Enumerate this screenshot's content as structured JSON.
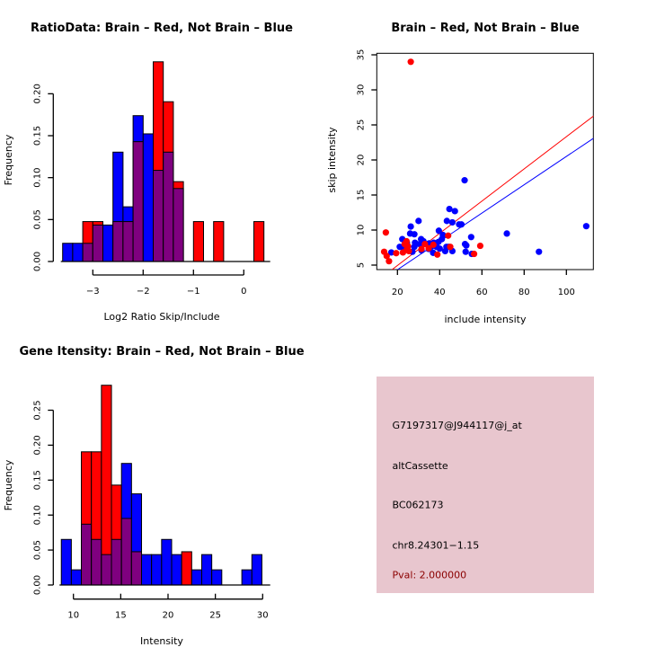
{
  "colors": {
    "brain": "#ff0000",
    "not_brain": "#0000ff",
    "overlap": "#7f007f",
    "info_bg": "#e8c6ce",
    "pval_text": "#8b0000"
  },
  "chart_data": [
    {
      "id": "ratio-hist",
      "type": "bar",
      "subtype": "overlaid-histogram",
      "title": "RatioData: Brain – Red, Not Brain – Blue",
      "xlabel": "Log2 Ratio Skip/Include",
      "ylabel": "Frequency",
      "xlim": [
        -3.7,
        0.5
      ],
      "ylim": [
        0,
        0.24
      ],
      "xticks": [
        -3,
        -2,
        -1,
        0
      ],
      "xtick_labels": [
        "−3",
        "−2",
        "−1",
        "0"
      ],
      "yticks": [
        0.0,
        0.05,
        0.1,
        0.15,
        0.2
      ],
      "ytick_labels": [
        "0.00",
        "0.05",
        "0.10",
        "0.15",
        "0.20"
      ],
      "bin_start": -3.6,
      "bin_width": 0.2,
      "series": [
        {
          "name": "Not Brain",
          "color": "blue",
          "values": [
            0.0217,
            0.0217,
            0.0217,
            0.0435,
            0.0435,
            0.1304,
            0.0652,
            0.1739,
            0.1522,
            0.1087,
            0.1304,
            0.087,
            0,
            0,
            0,
            0,
            0,
            0,
            0,
            0
          ]
        },
        {
          "name": "Brain",
          "color": "red",
          "values": [
            0,
            0,
            0.0476,
            0.0476,
            0,
            0.0476,
            0.0476,
            0.1429,
            0,
            0.2381,
            0.1905,
            0.0952,
            0,
            0.0476,
            0,
            0.0476,
            0,
            0,
            0,
            0.0476
          ]
        }
      ],
      "grid": false,
      "legend": "none"
    },
    {
      "id": "scatter",
      "type": "scatter",
      "title": "Brain – Red, Not Brain – Blue",
      "xlabel": "include intensity",
      "ylabel": "skip intensity",
      "xlim": [
        10.2,
        112.8
      ],
      "ylim": [
        4.2,
        35.3
      ],
      "xticks": [
        20,
        40,
        60,
        80,
        100
      ],
      "xtick_labels": [
        "20",
        "40",
        "60",
        "80",
        "100"
      ],
      "yticks": [
        5,
        10,
        15,
        20,
        25,
        30,
        35
      ],
      "ytick_labels": [
        "5",
        "10",
        "15",
        "20",
        "25",
        "30",
        "35"
      ],
      "series": [
        {
          "name": "Not Brain",
          "color": "blue",
          "points": [
            [
              51.8,
              17.1
            ],
            [
              44.6,
              13.0
            ],
            [
              47.2,
              12.7
            ],
            [
              30.0,
              11.3
            ],
            [
              43.4,
              11.3
            ],
            [
              46.0,
              11.1
            ],
            [
              49.2,
              10.8
            ],
            [
              50.3,
              10.8
            ],
            [
              26.3,
              10.5
            ],
            [
              39.6,
              9.9
            ],
            [
              26.0,
              9.5
            ],
            [
              28.0,
              9.4
            ],
            [
              41.5,
              9.3
            ],
            [
              54.9,
              9.0
            ],
            [
              22.3,
              8.7
            ],
            [
              31.2,
              8.7
            ],
            [
              28.3,
              8.2
            ],
            [
              32.3,
              8.4
            ],
            [
              24.5,
              8.2
            ],
            [
              37.2,
              8.2
            ],
            [
              44.3,
              7.6
            ],
            [
              43.2,
              7.6
            ],
            [
              52.0,
              8.0
            ],
            [
              52.6,
              7.8
            ],
            [
              21.1,
              7.6
            ],
            [
              28.0,
              7.6
            ],
            [
              36.0,
              7.6
            ],
            [
              31.4,
              7.1
            ],
            [
              27.1,
              6.9
            ],
            [
              17.1,
              6.8
            ],
            [
              40.0,
              7.35
            ],
            [
              42.6,
              7.0
            ],
            [
              36.9,
              6.75
            ],
            [
              52.3,
              6.9
            ],
            [
              55.2,
              6.6
            ],
            [
              39.4,
              8.3
            ],
            [
              34.8,
              7.3
            ],
            [
              71.8,
              9.5
            ],
            [
              87.0,
              6.9
            ],
            [
              109.4,
              10.55
            ],
            [
              30.5,
              8.0
            ],
            [
              38.5,
              7.6
            ],
            [
              35.0,
              8.1
            ],
            [
              46.0,
              7.0
            ],
            [
              23.0,
              7.2
            ],
            [
              41.0,
              8.7
            ]
          ]
        },
        {
          "name": "Brain",
          "color": "red",
          "points": [
            [
              26.3,
              34.0
            ],
            [
              14.5,
              9.65
            ],
            [
              44.0,
              9.2
            ],
            [
              59.2,
              7.75
            ],
            [
              23.4,
              8.0
            ],
            [
              24.5,
              7.3
            ],
            [
              22.6,
              6.8
            ],
            [
              19.4,
              6.7
            ],
            [
              13.7,
              6.9
            ],
            [
              14.9,
              6.3
            ],
            [
              16.0,
              5.55
            ],
            [
              34.8,
              7.4
            ],
            [
              38.9,
              6.5
            ],
            [
              56.3,
              6.6
            ],
            [
              25.4,
              7.0
            ],
            [
              31.4,
              7.3
            ],
            [
              24.3,
              8.4
            ],
            [
              25.0,
              7.7
            ],
            [
              37.0,
              7.9
            ],
            [
              45.0,
              7.6
            ],
            [
              33.0,
              8.0
            ]
          ]
        }
      ],
      "lines": [
        {
          "name": "Brain fit",
          "color": "red",
          "slope": 0.2297,
          "intercept": 0.35
        },
        {
          "name": "Not Brain fit",
          "color": "blue",
          "slope": 0.202,
          "intercept": 0.3
        }
      ],
      "grid": false,
      "legend": "none"
    },
    {
      "id": "intensity-hist",
      "type": "bar",
      "subtype": "overlaid-histogram",
      "title": "Gene Itensity: Brain – Red, Not Brain – Blue",
      "xlabel": "Intensity",
      "ylabel": "Frequency",
      "xlim": [
        8.5,
        30.5
      ],
      "ylim": [
        0,
        0.29
      ],
      "xticks": [
        10,
        15,
        20,
        25,
        30
      ],
      "xtick_labels": [
        "10",
        "15",
        "20",
        "25",
        "30"
      ],
      "yticks": [
        0.0,
        0.05,
        0.1,
        0.15,
        0.2,
        0.25
      ],
      "ytick_labels": [
        "0.00",
        "0.05",
        "0.10",
        "0.15",
        "0.20",
        "0.25"
      ],
      "bin_start": 8.72,
      "bin_width": 1.06,
      "series": [
        {
          "name": "Not Brain",
          "color": "blue",
          "values": [
            0.0652,
            0.0217,
            0.087,
            0.0652,
            0.0435,
            0.0652,
            0.1739,
            0.1304,
            0.0435,
            0.0435,
            0.0652,
            0.0435,
            0,
            0.0217,
            0.0435,
            0.0217,
            0,
            0,
            0.0217,
            0.0435
          ]
        },
        {
          "name": "Brain",
          "color": "red",
          "values": [
            0,
            0,
            0.1905,
            0.1905,
            0.2857,
            0.1429,
            0.0952,
            0.0476,
            0,
            0,
            0,
            0,
            0.0476,
            0,
            0,
            0,
            0,
            0,
            0,
            0
          ]
        }
      ],
      "grid": false,
      "legend": "none"
    }
  ],
  "info_panel": {
    "probe_id": "G7197317@J944117@j_at",
    "event_type": "altCassette",
    "accession": "BC062173",
    "location": "chr8.24301−1.15",
    "pval": "Pval: 2.000000"
  }
}
